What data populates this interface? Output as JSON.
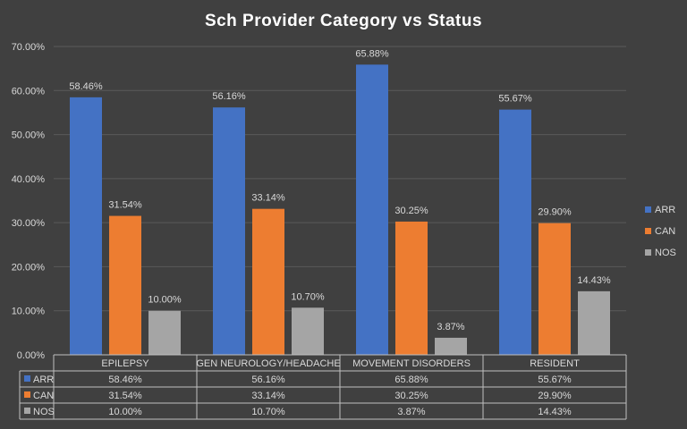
{
  "chart_data": {
    "type": "bar",
    "title": "Sch Provider  Category  vs Status",
    "categories": [
      "EPILEPSY",
      "GEN NEUROLOGY/HEADACHE",
      "MOVEMENT DISORDERS",
      "RESIDENT"
    ],
    "series": [
      {
        "name": "ARR",
        "color": "#4472c4",
        "values": [
          58.46,
          56.16,
          65.88,
          55.67
        ],
        "labels": [
          "58.46%",
          "56.16%",
          "65.88%",
          "55.67%"
        ]
      },
      {
        "name": "CAN",
        "color": "#ed7d31",
        "values": [
          31.54,
          33.14,
          30.25,
          29.9
        ],
        "labels": [
          "31.54%",
          "33.14%",
          "30.25%",
          "29.90%"
        ]
      },
      {
        "name": "NOS",
        "color": "#a5a5a5",
        "values": [
          10.0,
          10.7,
          3.87,
          14.43
        ],
        "labels": [
          "10.00%",
          "10.70%",
          "3.87%",
          "14.43%"
        ]
      }
    ],
    "ylim": [
      0,
      70
    ],
    "yticks": [
      0,
      10,
      20,
      30,
      40,
      50,
      60,
      70
    ],
    "ytick_labels": [
      "0.00%",
      "10.00%",
      "20.00%",
      "30.00%",
      "40.00%",
      "50.00%",
      "60.00%",
      "70.00%"
    ],
    "grid": true,
    "legend": "right",
    "data_table": true,
    "xlabel": "",
    "ylabel": ""
  }
}
